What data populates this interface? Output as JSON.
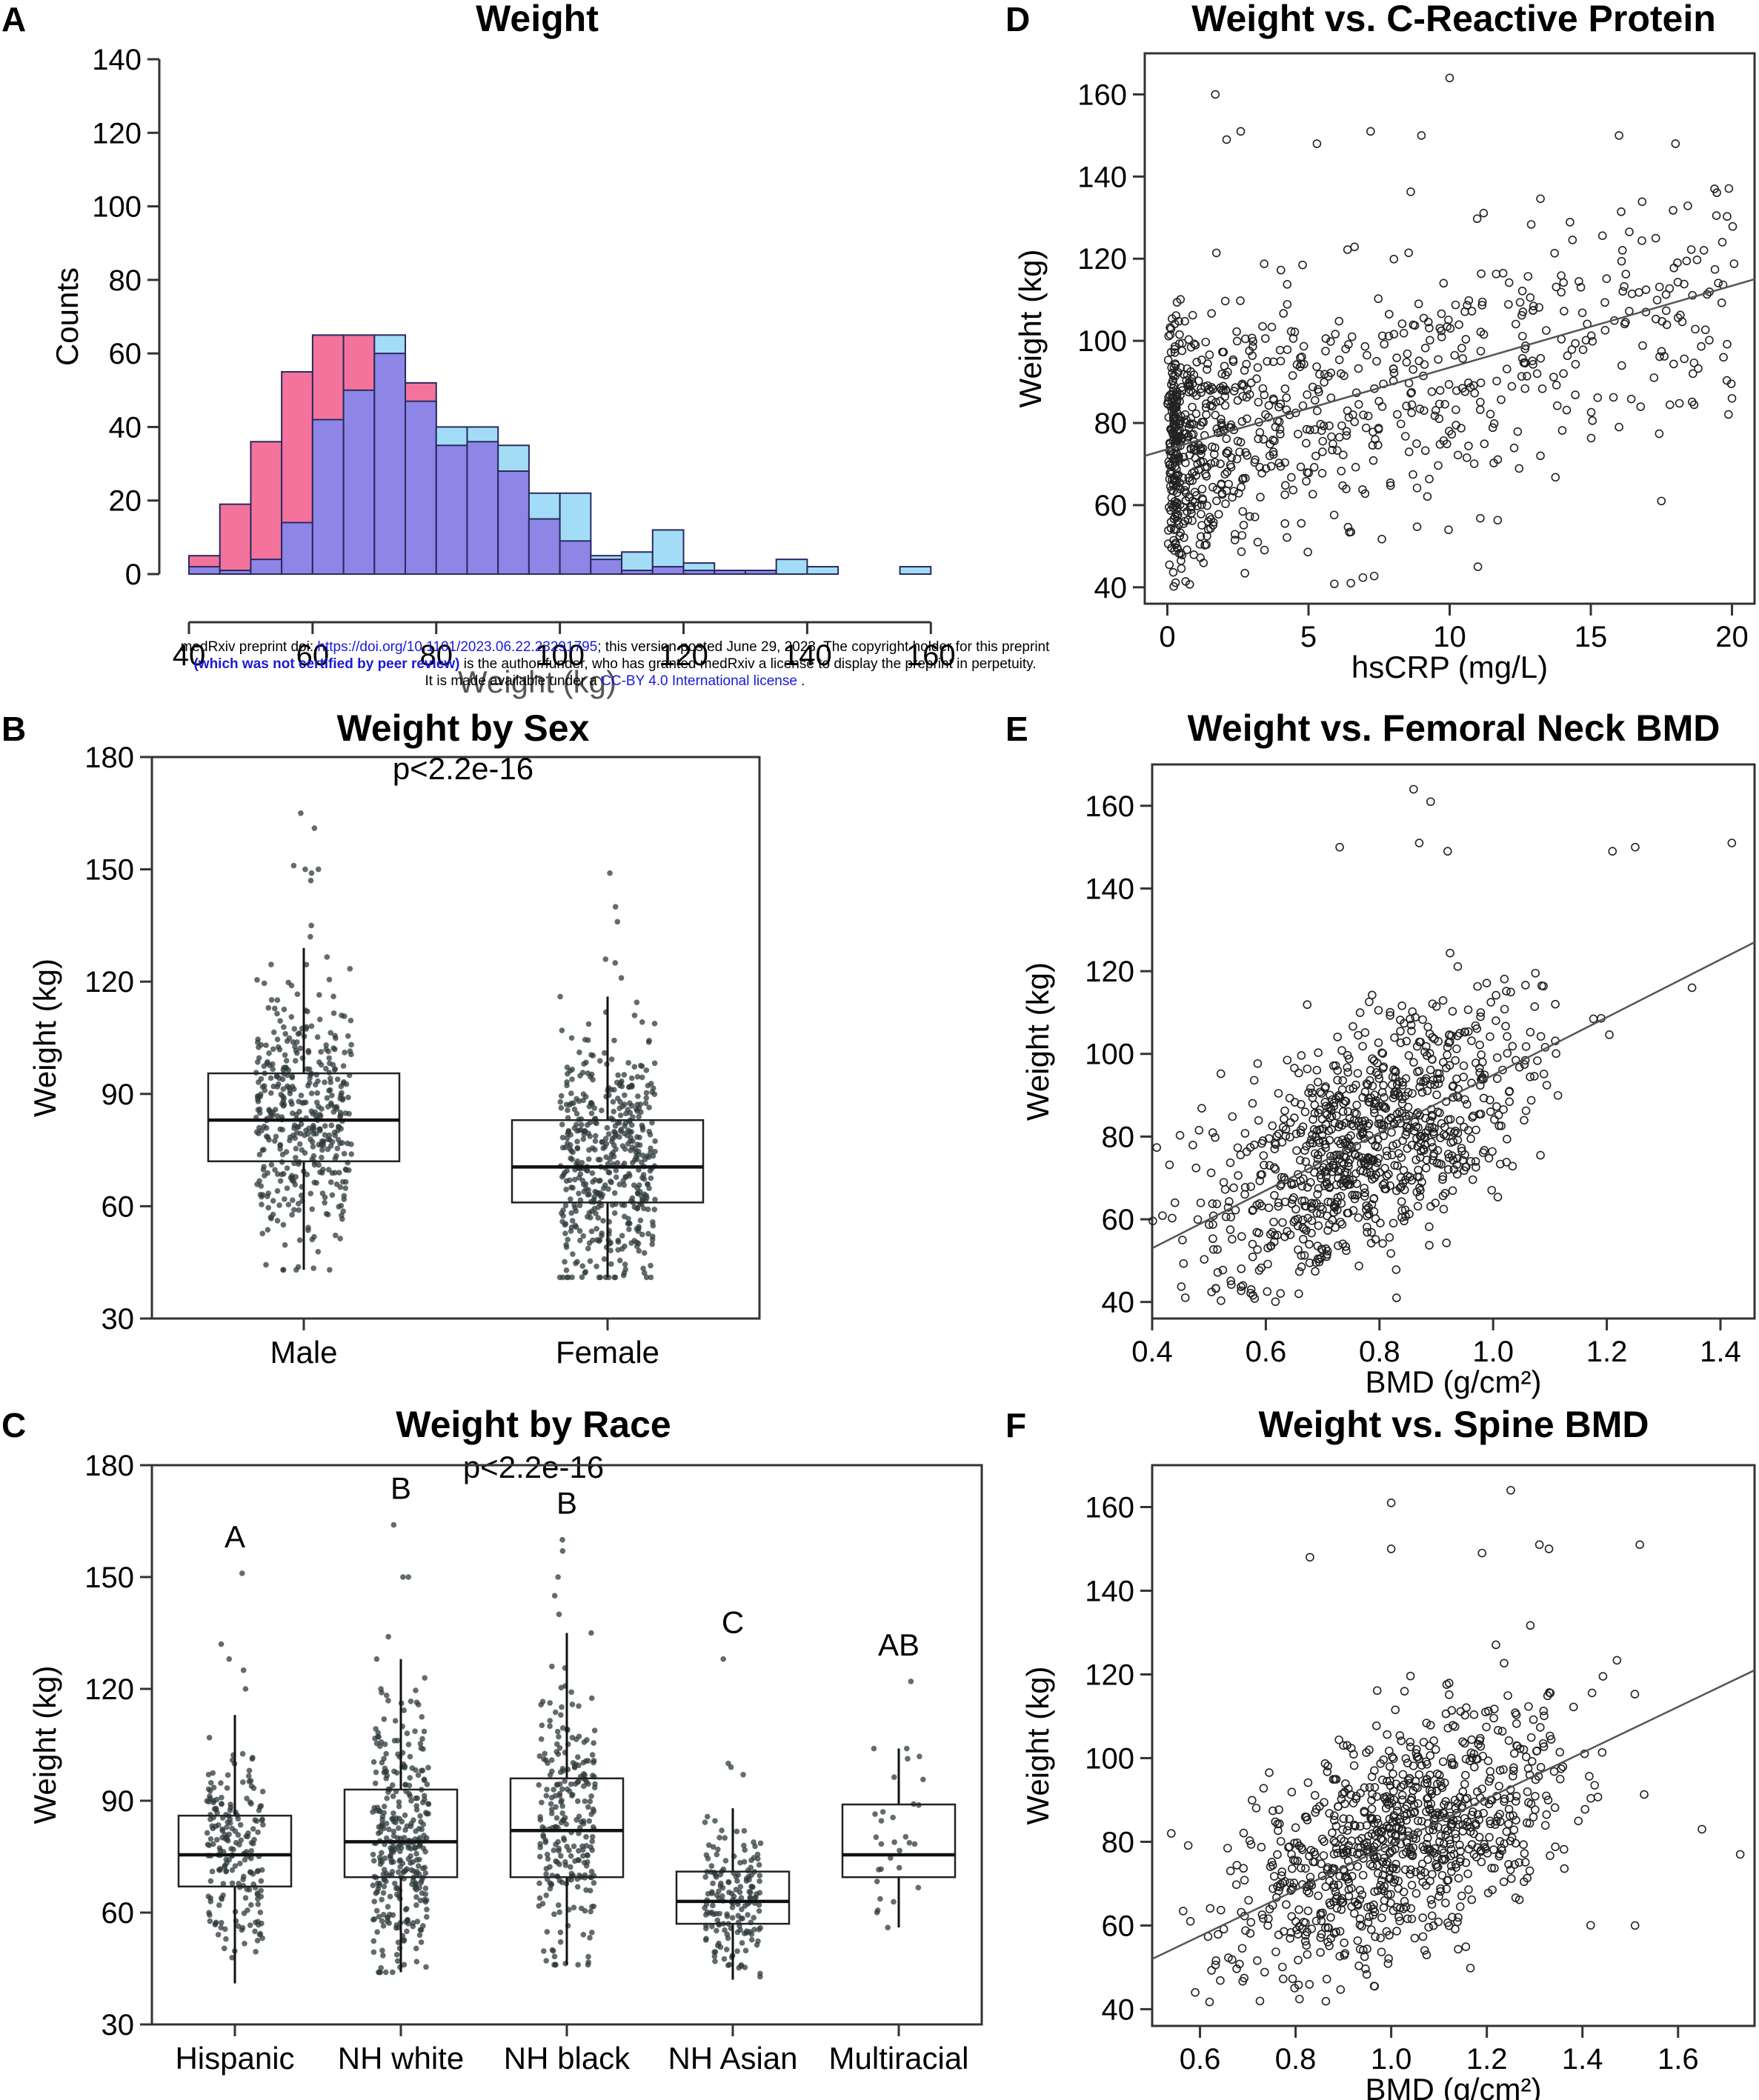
{
  "watermark": {
    "line1_a": "medRxiv preprint doi: ",
    "line1_link": "https://doi.org/10.1101/2023.06.22.23291795",
    "line1_b": "; this version posted June 29, 2023. The copyright holder for this preprint",
    "line2_bold": "(which was not certified by peer review)",
    "line2_b": " is the author/funder, who has granted medRxiv a license to display the preprint in perpetuity.",
    "line3_a": "It is made available under a ",
    "line3_link": "CC-BY 4.0 International license",
    "line3_b": " ."
  },
  "colors": {
    "male": "#a3dcf7",
    "female": "#f4739c",
    "overlap": "#8e86e6",
    "axis": "#333333",
    "point": "#2f3b3b"
  },
  "chart_data": [
    {
      "id": "A",
      "panel_label": "A",
      "type": "bar",
      "title": "Weight",
      "subtitle": "",
      "xlabel": "Weight (kg)",
      "ylabel": "Counts",
      "xlim": [
        40,
        165
      ],
      "ylim": [
        0,
        140
      ],
      "xticks": [
        40,
        60,
        80,
        100,
        120,
        140,
        160
      ],
      "yticks": [
        0,
        20,
        40,
        60,
        80,
        100,
        120,
        140
      ],
      "bin_start": 40,
      "bin_width": 5,
      "series": [
        {
          "name": "",
          "color": "#a3dcf7",
          "values": [
            2,
            1,
            4,
            14,
            42,
            50,
            65,
            47,
            40,
            40,
            35,
            22,
            22,
            5,
            6,
            12,
            3,
            1,
            1,
            4,
            2,
            0,
            0,
            2,
            0
          ]
        },
        {
          "name": "",
          "color": "#f4739c",
          "values": [
            5,
            19,
            36,
            55,
            65,
            65,
            60,
            52,
            35,
            36,
            28,
            15,
            9,
            4,
            1,
            2,
            1,
            1,
            1,
            0,
            0,
            0,
            0,
            0,
            0
          ]
        }
      ]
    },
    {
      "id": "B",
      "panel_label": "B",
      "type": "box",
      "title": "Weight by Sex",
      "subtitle": "p<2.2e-16",
      "xlabel": "",
      "ylabel": "Weight (kg)",
      "ylim": [
        30,
        180
      ],
      "yticks": [
        30,
        60,
        90,
        120,
        150,
        180
      ],
      "categories": [
        "Male",
        "Female"
      ],
      "boxes": [
        {
          "category": "Male",
          "q1": 72,
          "median": 83,
          "q3": 95.5,
          "whisker_low": 43,
          "whisker_high": 129,
          "n": 420,
          "outliers": [
            165,
            161,
            151,
            150,
            149,
            150,
            147,
            135,
            132
          ]
        },
        {
          "category": "Female",
          "q1": 61,
          "median": 70.5,
          "q3": 83,
          "whisker_low": 41,
          "whisker_high": 116,
          "n": 480,
          "outliers": [
            149,
            140,
            136,
            126,
            125,
            121
          ]
        }
      ]
    },
    {
      "id": "C",
      "panel_label": "C",
      "type": "box",
      "title": "Weight by Race",
      "subtitle": "p<2.2e-16",
      "xlabel": "",
      "ylabel": "Weight (kg)",
      "ylim": [
        30,
        180
      ],
      "yticks": [
        30,
        60,
        90,
        120,
        150,
        180
      ],
      "categories": [
        "Hispanic",
        "NH white",
        "NH black",
        "NH Asian",
        "Multiracial"
      ],
      "boxes": [
        {
          "category": "Hispanic",
          "letter": "A",
          "q1": 67,
          "median": 75.5,
          "q3": 86,
          "whisker_low": 41,
          "whisker_high": 113,
          "n": 200,
          "outliers": [
            151,
            132,
            128,
            125,
            120
          ]
        },
        {
          "category": "NH white",
          "letter": "B",
          "q1": 69.5,
          "median": 79,
          "q3": 93,
          "whisker_low": 44,
          "whisker_high": 128,
          "n": 330,
          "outliers": [
            164,
            150,
            150,
            134
          ]
        },
        {
          "category": "NH black",
          "letter": "B",
          "q1": 69.5,
          "median": 82,
          "q3": 96,
          "whisker_low": 46,
          "whisker_high": 135,
          "n": 250,
          "outliers": [
            160,
            157,
            150,
            145,
            140
          ]
        },
        {
          "category": "NH Asian",
          "letter": "C",
          "q1": 57,
          "median": 63,
          "q3": 71,
          "whisker_low": 42,
          "whisker_high": 88,
          "n": 170,
          "outliers": [
            128,
            100,
            99,
            97
          ]
        },
        {
          "category": "Multiracial",
          "letter": "AB",
          "q1": 69.5,
          "median": 75.5,
          "q3": 89,
          "whisker_low": 56,
          "whisker_high": 104,
          "n": 30,
          "outliers": [
            122
          ]
        }
      ]
    },
    {
      "id": "D",
      "panel_label": "D",
      "type": "scatter",
      "title": "Weight vs. C-Reactive Protein",
      "subtitle": "",
      "xlabel": "hsCRP (mg/L)",
      "ylabel": "Weight (kg)",
      "xlim": [
        -0.8,
        20.8
      ],
      "ylim": [
        36,
        170
      ],
      "xticks": [
        0,
        5,
        10,
        15,
        20
      ],
      "yticks": [
        40,
        60,
        80,
        100,
        120,
        140,
        160
      ],
      "trend": {
        "x": [
          -0.8,
          20.8
        ],
        "y": [
          72,
          115
        ]
      },
      "n": 900,
      "highlights": [
        {
          "x": 1.7,
          "y": 160
        },
        {
          "x": 10,
          "y": 164
        },
        {
          "x": 16,
          "y": 150
        },
        {
          "x": 18,
          "y": 148
        },
        {
          "x": 9,
          "y": 150
        },
        {
          "x": 7.2,
          "y": 151
        },
        {
          "x": 2.6,
          "y": 151
        },
        {
          "x": 2.1,
          "y": 149
        },
        {
          "x": 5.3,
          "y": 148
        },
        {
          "x": 19.7,
          "y": 96
        },
        {
          "x": 20,
          "y": 86
        },
        {
          "x": 17.5,
          "y": 61
        },
        {
          "x": 11,
          "y": 45
        },
        {
          "x": 6.5,
          "y": 41
        },
        {
          "x": 16,
          "y": 79
        },
        {
          "x": 17.3,
          "y": 125
        }
      ]
    },
    {
      "id": "E",
      "panel_label": "E",
      "type": "scatter",
      "title": "Weight vs. Femoral Neck BMD",
      "subtitle": "",
      "xlabel": "BMD (g/cm²)",
      "ylabel": "Weight (kg)",
      "xlim": [
        0.4,
        1.46
      ],
      "ylim": [
        36,
        170
      ],
      "xticks": [
        0.4,
        0.6,
        0.8,
        1.0,
        1.2,
        1.4
      ],
      "yticks": [
        40,
        60,
        80,
        100,
        120,
        140,
        160
      ],
      "tick_labels_x": [
        "0.4",
        "0.6",
        "0.8",
        "1.0",
        "1.2",
        "1.4"
      ],
      "trend": {
        "x": [
          0.4,
          1.46
        ],
        "y": [
          53,
          127
        ]
      },
      "n": 900,
      "highlights": [
        {
          "x": 0.86,
          "y": 164
        },
        {
          "x": 0.89,
          "y": 161
        },
        {
          "x": 0.87,
          "y": 151
        },
        {
          "x": 1.25,
          "y": 150
        },
        {
          "x": 1.42,
          "y": 151
        },
        {
          "x": 1.21,
          "y": 149
        },
        {
          "x": 0.92,
          "y": 149
        },
        {
          "x": 0.73,
          "y": 150
        },
        {
          "x": 1.35,
          "y": 116
        },
        {
          "x": 0.44,
          "y": 64
        },
        {
          "x": 0.83,
          "y": 41
        }
      ]
    },
    {
      "id": "F",
      "panel_label": "F",
      "type": "scatter",
      "title": "Weight vs. Spine BMD",
      "subtitle": "",
      "xlabel": "BMD (g/cm²)",
      "ylabel": "Weight (kg)",
      "xlim": [
        0.5,
        1.76
      ],
      "ylim": [
        36,
        170
      ],
      "xticks": [
        0.6,
        0.8,
        1.0,
        1.2,
        1.4,
        1.6
      ],
      "yticks": [
        40,
        60,
        80,
        100,
        120,
        140,
        160
      ],
      "tick_labels_x": [
        "0.6",
        "0.8",
        "1.0",
        "1.2",
        "1.4",
        "1.6"
      ],
      "trend": {
        "x": [
          0.5,
          1.76
        ],
        "y": [
          52,
          121
        ]
      },
      "n": 900,
      "highlights": [
        {
          "x": 1.25,
          "y": 164
        },
        {
          "x": 1.0,
          "y": 161
        },
        {
          "x": 1.31,
          "y": 151
        },
        {
          "x": 1.52,
          "y": 151
        },
        {
          "x": 1.33,
          "y": 150
        },
        {
          "x": 1.19,
          "y": 149
        },
        {
          "x": 1.0,
          "y": 150
        },
        {
          "x": 0.83,
          "y": 148
        },
        {
          "x": 0.54,
          "y": 82
        },
        {
          "x": 0.58,
          "y": 61
        },
        {
          "x": 0.59,
          "y": 44
        },
        {
          "x": 1.73,
          "y": 77
        },
        {
          "x": 1.65,
          "y": 83
        },
        {
          "x": 1.51,
          "y": 60
        }
      ]
    }
  ]
}
